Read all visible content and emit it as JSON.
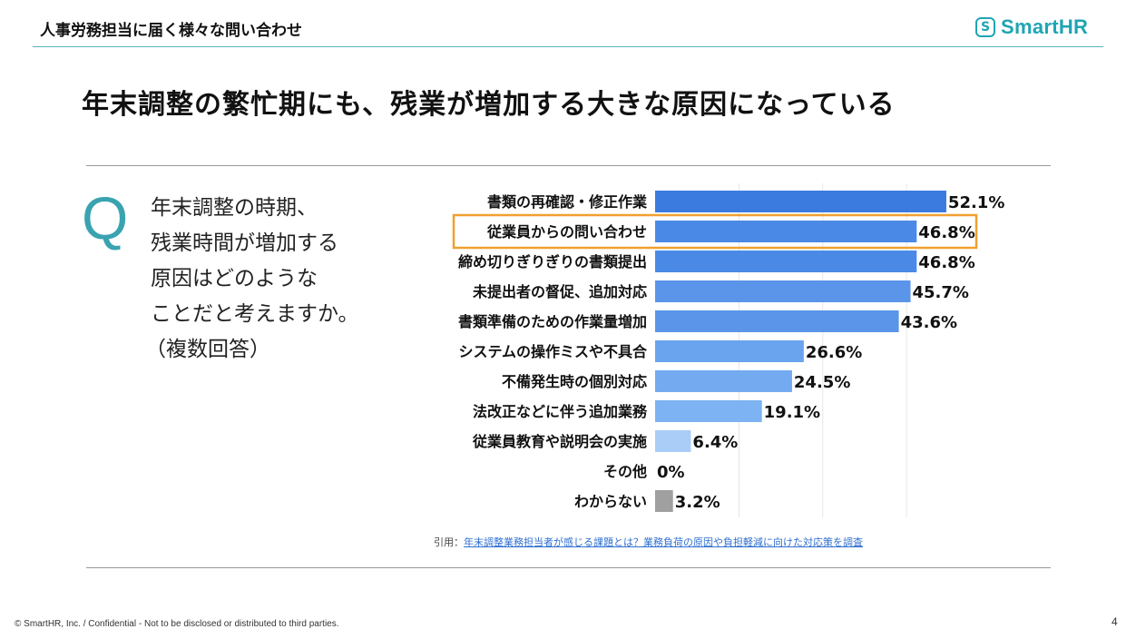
{
  "header": {
    "title": "人事労務担当に届く様々な問い合わせ"
  },
  "logo": {
    "mark": "S",
    "text": "SmartHR"
  },
  "headline": "年末調整の繁忙期にも、残業が増加する大きな原因になっている",
  "question": {
    "letter": "Q",
    "lines": [
      "年末調整の時期、",
      "残業時間が増加する",
      "原因はどのような",
      "ことだと考えますか。",
      "（複数回答）"
    ]
  },
  "chart_data": {
    "type": "bar",
    "orientation": "horizontal",
    "categories": [
      "書類の再確認・修正作業",
      "従業員からの問い合わせ",
      "締め切りぎりぎりの書類提出",
      "未提出者の督促、追加対応",
      "書類準備のための作業量増加",
      "システムの操作ミスや不具合",
      "不備発生時の個別対応",
      "法改正などに伴う追加業務",
      "従業員教育や説明会の実施",
      "その他",
      "わからない"
    ],
    "values": [
      52.1,
      46.8,
      46.8,
      45.7,
      43.6,
      26.6,
      24.5,
      19.1,
      6.4,
      0,
      3.2
    ],
    "value_labels": [
      "52.1%",
      "46.8%",
      "46.8%",
      "45.7%",
      "43.6%",
      "26.6%",
      "24.5%",
      "19.1%",
      "6.4%",
      "0%",
      "3.2%"
    ],
    "unit": "%",
    "xlim": [
      0,
      60
    ],
    "grid": true,
    "highlighted_category": "従業員からの問い合わせ",
    "colors": [
      "#3b7be0",
      "#4a8ae6",
      "#4a8ae6",
      "#5a95ea",
      "#5a95ea",
      "#6aa3ee",
      "#74abf0",
      "#7db3f2",
      "#a9cdf7",
      "#a9cdf7",
      "#a0a0a0"
    ],
    "highlight_color": "#f0a030"
  },
  "citation": {
    "prefix": "引用：",
    "link": "年末調整業務担当者が感じる課題とは？業務負荷の原因や負担軽減に向けた対応策を調査"
  },
  "footer": {
    "copyright": "© SmartHR, Inc. / Confidential - Not to be disclosed or distributed to third parties.",
    "page": "4"
  }
}
